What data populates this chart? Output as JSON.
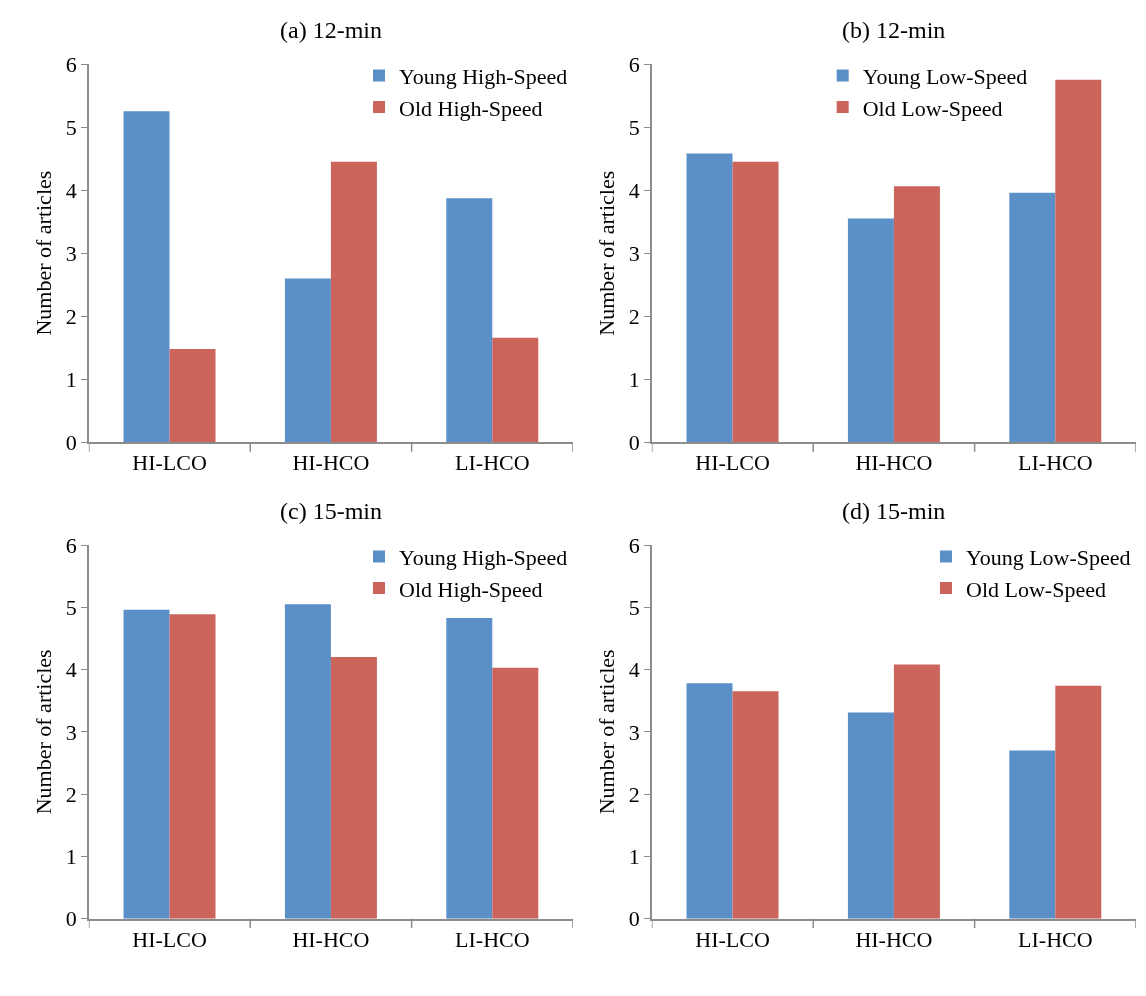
{
  "chart_data": [
    {
      "type": "bar",
      "title": "(a) 12-min",
      "ylabel": "Number of articles",
      "categories": [
        "HI-LCO",
        "HI-HCO",
        "LI-HCO"
      ],
      "ylim": [
        0,
        6
      ],
      "yticks": [
        0,
        1,
        2,
        3,
        4,
        5,
        6
      ],
      "legend": "top right",
      "series": [
        {
          "name": "Young High-Speed",
          "color": "#5b8fc7",
          "values": [
            5.25,
            2.6,
            3.87
          ]
        },
        {
          "name": "Old High-Speed",
          "color": "#cb645b",
          "values": [
            1.48,
            4.45,
            1.66
          ]
        }
      ]
    },
    {
      "type": "bar",
      "title": "(b) 12-min",
      "ylabel": "Number of articles",
      "categories": [
        "HI-LCO",
        "HI-HCO",
        "LI-HCO"
      ],
      "ylim": [
        0,
        6
      ],
      "yticks": [
        0,
        1,
        2,
        3,
        4,
        5,
        6
      ],
      "legend": "top",
      "series": [
        {
          "name": "Young Low-Speed",
          "color": "#5b8fc7",
          "values": [
            4.58,
            3.55,
            3.96
          ]
        },
        {
          "name": "Old Low-Speed",
          "color": "#cb645b",
          "values": [
            4.45,
            4.06,
            5.75
          ]
        }
      ]
    },
    {
      "type": "bar",
      "title": "(c) 15-min",
      "ylabel": "Number of articles",
      "categories": [
        "HI-LCO",
        "HI-HCO",
        "LI-HCO"
      ],
      "ylim": [
        0,
        6
      ],
      "yticks": [
        0,
        1,
        2,
        3,
        4,
        5,
        6
      ],
      "legend": "top right",
      "series": [
        {
          "name": "Young High-Speed",
          "color": "#5b8fc7",
          "values": [
            4.96,
            5.05,
            4.83
          ]
        },
        {
          "name": "Old High-Speed",
          "color": "#cb645b",
          "values": [
            4.89,
            4.2,
            4.03
          ]
        }
      ]
    },
    {
      "type": "bar",
      "title": "(d) 15-min",
      "ylabel": "Number of articles",
      "categories": [
        "HI-LCO",
        "HI-HCO",
        "LI-HCO"
      ],
      "ylim": [
        0,
        6
      ],
      "yticks": [
        0,
        1,
        2,
        3,
        4,
        5,
        6
      ],
      "legend": "top right",
      "series": [
        {
          "name": "Young Low-Speed",
          "color": "#5b8fc7",
          "values": [
            3.78,
            3.31,
            2.7
          ]
        },
        {
          "name": "Old Low-Speed",
          "color": "#cb645b",
          "values": [
            3.65,
            4.08,
            3.74
          ]
        }
      ]
    }
  ]
}
